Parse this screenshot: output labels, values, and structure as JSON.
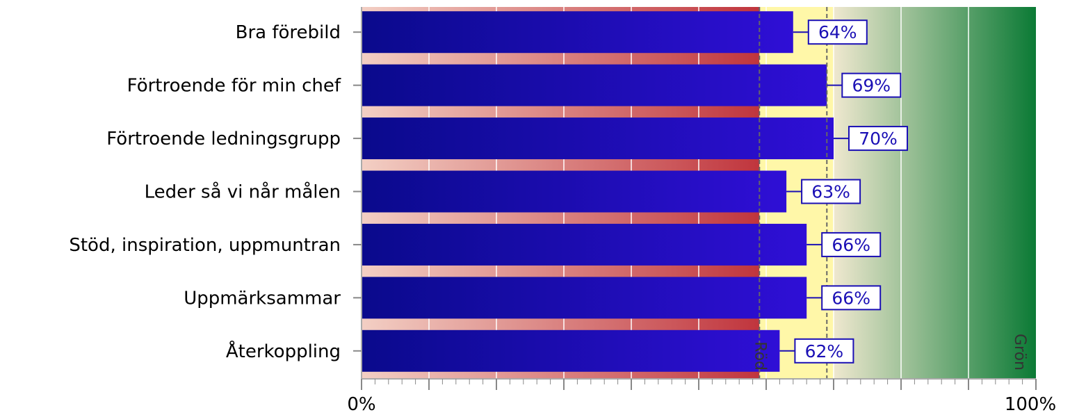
{
  "chart_data": {
    "type": "bar",
    "orientation": "horizontal",
    "categories": [
      "Bra förebild",
      "Förtroende för min chef",
      "Förtroende ledningsgrupp",
      "Leder så vi når målen",
      "Stöd, inspiration, uppmuntran",
      "Uppmärksammar",
      "Återkoppling"
    ],
    "values": [
      64,
      69,
      70,
      63,
      66,
      66,
      62
    ],
    "data_labels": [
      "64%",
      "69%",
      "70%",
      "63%",
      "66%",
      "66%",
      "62%"
    ],
    "xlim": [
      0,
      100
    ],
    "x_tick_labels": [
      "0%",
      "100%"
    ],
    "thresholds": [
      {
        "label": "Röd",
        "value": 59
      },
      {
        "label": "Grön",
        "value": 69
      }
    ],
    "grid": true,
    "colors": {
      "bar_start": "#0a0a8c",
      "bar_end": "#2f0fd6",
      "label_border": "#1a0fb5",
      "red_light": "#f3cfc4",
      "red_dark": "#c0353d",
      "yellow": "#fff7a8",
      "green_light": "#efe8cf",
      "green_dark": "#0b7a35",
      "threshold_line": "#666666"
    }
  }
}
